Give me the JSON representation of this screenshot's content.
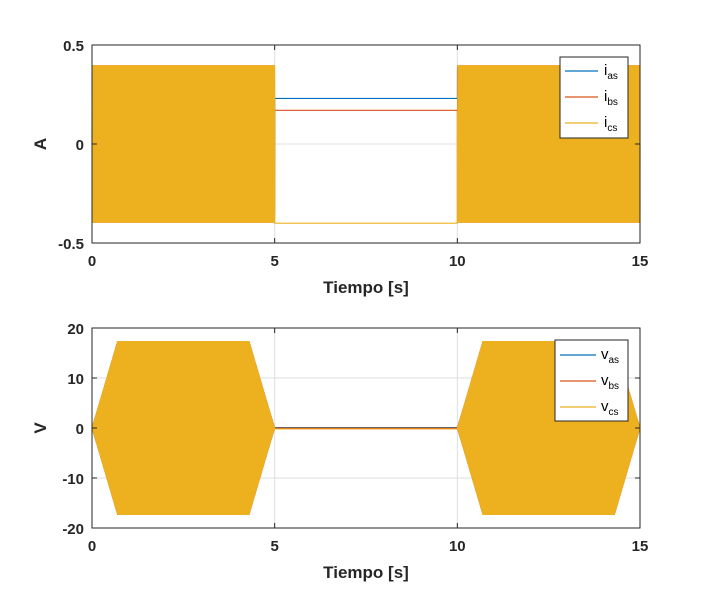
{
  "figure": {
    "charts": [
      {
        "xlabel": "Tiempo [s]",
        "ylabel": "A",
        "xticks": [
          "0",
          "5",
          "10",
          "15"
        ],
        "yticks": [
          "0.5",
          "0",
          "-0.5"
        ],
        "legend": [
          {
            "main": "i",
            "sub": "as"
          },
          {
            "main": "i",
            "sub": "bs"
          },
          {
            "main": "i",
            "sub": "cs"
          }
        ]
      },
      {
        "xlabel": "Tiempo [s]",
        "ylabel": "V",
        "xticks": [
          "0",
          "5",
          "10",
          "15"
        ],
        "yticks": [
          "20",
          "10",
          "0",
          "-10",
          "-20"
        ],
        "legend": [
          {
            "main": "v",
            "sub": "as"
          },
          {
            "main": "v",
            "sub": "bs"
          },
          {
            "main": "v",
            "sub": "cs"
          }
        ]
      }
    ]
  },
  "chart_data": [
    {
      "type": "line",
      "title": "",
      "xlabel": "Tiempo [s]",
      "ylabel": "A",
      "xlim": [
        0,
        15
      ],
      "ylim": [
        -0.5,
        0.5
      ],
      "xticks": [
        0,
        5,
        10,
        15
      ],
      "yticks": [
        -0.5,
        0,
        0.5
      ],
      "grid": true,
      "legend_position": "top-right",
      "colors": [
        "#0072BD",
        "#D95319",
        "#EDB120"
      ],
      "series": [
        {
          "name": "i_as",
          "description_envelope_amplitude": 0.4,
          "hold_value": 0.23
        },
        {
          "name": "i_bs",
          "description_envelope_amplitude": 0.4,
          "hold_value": 0.17
        },
        {
          "name": "i_cs",
          "description_envelope_amplitude": 0.4,
          "hold_value": -0.4
        }
      ],
      "segments": [
        {
          "t_start": 0,
          "t_end": 5,
          "mode": "oscillating",
          "amplitude": 0.4
        },
        {
          "t_start": 5,
          "t_end": 10,
          "mode": "constant"
        },
        {
          "t_start": 10,
          "t_end": 15,
          "mode": "oscillating",
          "amplitude": 0.4
        }
      ]
    },
    {
      "type": "line",
      "title": "",
      "xlabel": "Tiempo [s]",
      "ylabel": "V",
      "xlim": [
        0,
        15
      ],
      "ylim": [
        -20,
        20
      ],
      "xticks": [
        0,
        5,
        10,
        15
      ],
      "yticks": [
        -20,
        -10,
        0,
        10,
        20
      ],
      "grid": true,
      "legend_position": "top-right",
      "colors": [
        "#0072BD",
        "#D95319",
        "#EDB120"
      ],
      "series": [
        {
          "name": "v_as",
          "hold_value": 0.1
        },
        {
          "name": "v_bs",
          "hold_value": 0.0
        },
        {
          "name": "v_cs",
          "hold_value": -0.2
        }
      ],
      "envelope": [
        {
          "t": 0,
          "amp": 0
        },
        {
          "t": 0.7,
          "amp": 17.5
        },
        {
          "t": 4.3,
          "amp": 17.5
        },
        {
          "t": 5,
          "amp": 0
        },
        {
          "t": 10,
          "amp": 0
        },
        {
          "t": 10.7,
          "amp": 17.5
        },
        {
          "t": 14.3,
          "amp": 17.5
        },
        {
          "t": 15,
          "amp": 0
        }
      ]
    }
  ]
}
